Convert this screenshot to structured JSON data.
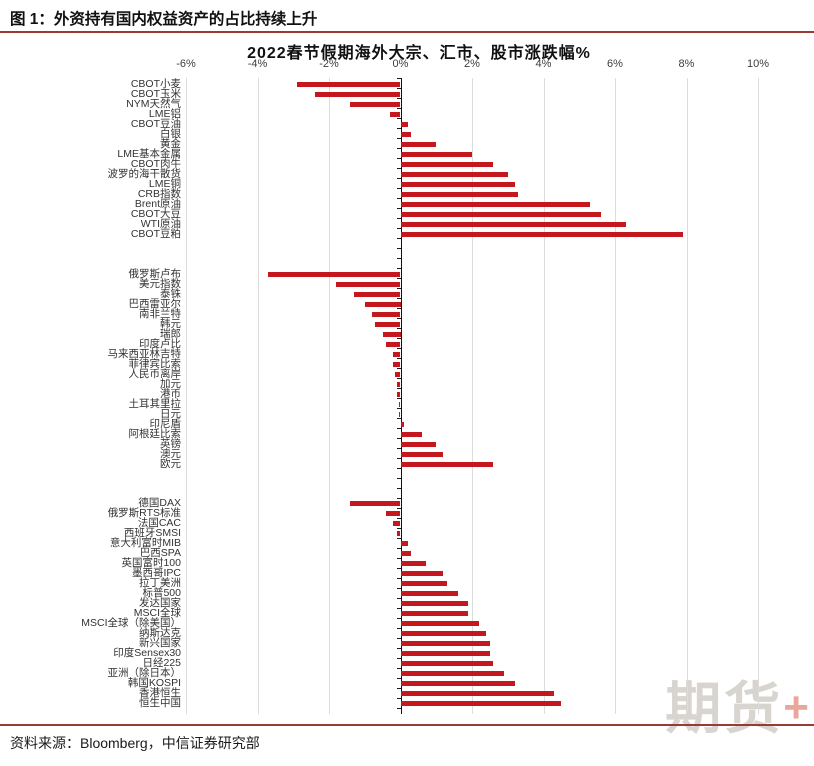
{
  "header": {
    "figure_title": "图 1：外资持有国内权益资产的占比持续上升"
  },
  "footer": {
    "source": "资料来源：Bloomberg，中信证券研究部"
  },
  "watermark": {
    "text": "期货",
    "plus": "+"
  },
  "colors": {
    "bar": "#c4171e",
    "rule": "#9a3a30",
    "grid": "#dcdcdc",
    "axis": "#111111",
    "watermark_gray": "#d8d4d0",
    "watermark_plus": "#e9a69b"
  },
  "chart_data": {
    "type": "bar",
    "orientation": "horizontal",
    "title": "2022春节假期海外大宗、汇市、股市涨跌幅%",
    "x_unit": "%",
    "xlim": [
      -6,
      10
    ],
    "ticks": [
      -6,
      -4,
      -2,
      0,
      2,
      4,
      6,
      8,
      10
    ],
    "tick_labels": [
      "-6%",
      "-4%",
      "-2%",
      "0%",
      "2%",
      "4%",
      "6%",
      "8%",
      "10%"
    ],
    "grid": true,
    "legend": false,
    "groups": [
      {
        "items": [
          {
            "label": "CBOT小麦",
            "value": -2.9
          },
          {
            "label": "CBOT玉米",
            "value": -2.4
          },
          {
            "label": "NYM天然气",
            "value": -1.4
          },
          {
            "label": "LME铝",
            "value": -0.3
          },
          {
            "label": "CBOT豆油",
            "value": 0.2
          },
          {
            "label": "白银",
            "value": 0.3
          },
          {
            "label": "黄金",
            "value": 1.0
          },
          {
            "label": "LME基本金属",
            "value": 2.0
          },
          {
            "label": "CBOT肉牛",
            "value": 2.6
          },
          {
            "label": "波罗的海干散货",
            "value": 3.0
          },
          {
            "label": "LME铜",
            "value": 3.2
          },
          {
            "label": "CRB指数",
            "value": 3.3
          },
          {
            "label": "Brent原油",
            "value": 5.3
          },
          {
            "label": "CBOT大豆",
            "value": 5.6
          },
          {
            "label": "WTI原油",
            "value": 6.3
          },
          {
            "label": "CBOT豆粕",
            "value": 7.9
          }
        ]
      },
      {
        "items": [
          {
            "label": "俄罗斯卢布",
            "value": -3.7
          },
          {
            "label": "美元指数",
            "value": -1.8
          },
          {
            "label": "泰铢",
            "value": -1.3
          },
          {
            "label": "巴西雷亚尔",
            "value": -1.0
          },
          {
            "label": "南非兰特",
            "value": -0.8
          },
          {
            "label": "韩元",
            "value": -0.7
          },
          {
            "label": "瑞郎",
            "value": -0.5
          },
          {
            "label": "印度卢比",
            "value": -0.4
          },
          {
            "label": "马来西亚林吉特",
            "value": -0.2
          },
          {
            "label": "菲律宾比索",
            "value": -0.2
          },
          {
            "label": "人民币离岸",
            "value": -0.15
          },
          {
            "label": "加元",
            "value": -0.1
          },
          {
            "label": "港币",
            "value": -0.1
          },
          {
            "label": "土耳其里拉",
            "value": -0.05
          },
          {
            "label": "日元",
            "value": -0.05
          },
          {
            "label": "印尼盾",
            "value": 0.1
          },
          {
            "label": "阿根廷比索",
            "value": 0.6
          },
          {
            "label": "英镑",
            "value": 1.0
          },
          {
            "label": "澳元",
            "value": 1.2
          },
          {
            "label": "欧元",
            "value": 2.6
          }
        ]
      },
      {
        "items": [
          {
            "label": "德国DAX",
            "value": -1.4
          },
          {
            "label": "俄罗斯RTS标准",
            "value": -0.4
          },
          {
            "label": "法国CAC",
            "value": -0.2
          },
          {
            "label": "西班牙SMSI",
            "value": -0.1
          },
          {
            "label": "意大利富时MIB",
            "value": 0.2
          },
          {
            "label": "巴西SPA",
            "value": 0.3
          },
          {
            "label": "英国富时100",
            "value": 0.7
          },
          {
            "label": "墨西哥IPC",
            "value": 1.2
          },
          {
            "label": "拉丁美洲",
            "value": 1.3
          },
          {
            "label": "标普500",
            "value": 1.6
          },
          {
            "label": "发达国家",
            "value": 1.9
          },
          {
            "label": "MSCI全球",
            "value": 1.9
          },
          {
            "label": "MSCI全球（除美国）",
            "value": 2.2
          },
          {
            "label": "纳斯达克",
            "value": 2.4
          },
          {
            "label": "新兴国家",
            "value": 2.5
          },
          {
            "label": "印度Sensex30",
            "value": 2.5
          },
          {
            "label": "日经225",
            "value": 2.6
          },
          {
            "label": "亚洲（除日本）",
            "value": 2.9
          },
          {
            "label": "韩国KOSPI",
            "value": 3.2
          },
          {
            "label": "香港恒生",
            "value": 4.3
          },
          {
            "label": "恒生中国",
            "value": 4.5
          }
        ]
      }
    ]
  }
}
